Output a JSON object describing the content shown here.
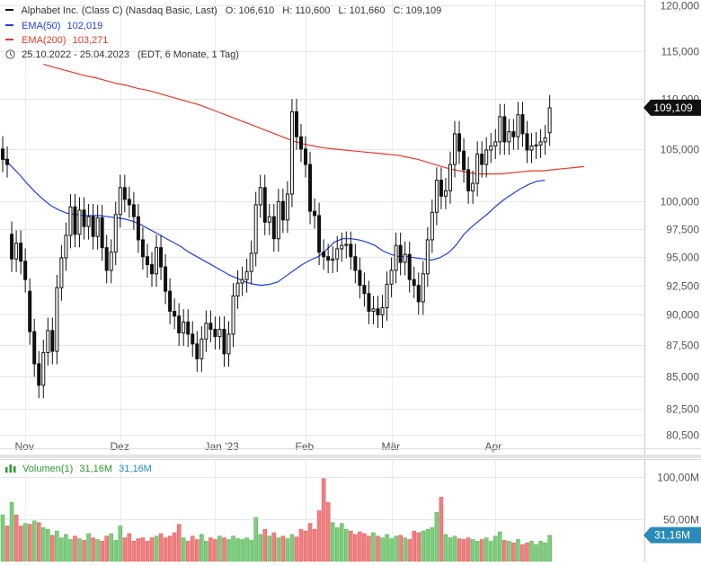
{
  "legend": {
    "instrument": "Alphabet Inc. (Class C) (Nasdaq Basic, Last)",
    "o_label": "O:",
    "o_value": "106,610",
    "h_label": "H:",
    "h_value": "110,600",
    "l_label": "L:",
    "l_value": "101,660",
    "c_label": "C:",
    "c_value": "109,109",
    "ema50_label": "EMA(50)",
    "ema50_value": "102,019",
    "ema200_label": "EMA(200)",
    "ema200_value": "103,271",
    "range": "25.10.2022 - 25.04.2023",
    "range_info": "(EDT, 6 Monate, 1 Tag)"
  },
  "volume_legend": {
    "label": "Volumen(1)",
    "value1": "31,16M",
    "value2": "31,16M"
  },
  "colors": {
    "ema50": "#1f3fe0",
    "ema200": "#e8382c",
    "candle": "#111111",
    "vol_up": "#7fcc7f",
    "vol_down": "#f08080",
    "price_tag": "#111111",
    "vol_tag": "#2a8bb8"
  },
  "chart_data": [
    {
      "type": "candlestick",
      "title": "Alphabet Inc. (Class C) (Nasdaq Basic, Last)",
      "y_scale": "log",
      "ylim": [
        79.5,
        120.6
      ],
      "y_ticks": [
        80.5,
        82.5,
        85,
        87.5,
        90,
        92.5,
        95,
        97.5,
        100,
        105,
        110,
        115,
        120
      ],
      "y_tick_labels": [
        "80,500",
        "82,500",
        "85,000",
        "87,500",
        "90,000",
        "92,500",
        "95,000",
        "97,500",
        "100,000",
        "105,000",
        "110,000",
        "115,000",
        "120,000"
      ],
      "x_labels": [
        {
          "label": "Nov",
          "index": 5
        },
        {
          "label": "Dez",
          "index": 26
        },
        {
          "label": "Jan '23",
          "index": 47
        },
        {
          "label": "Feb",
          "index": 67
        },
        {
          "label": "Mär",
          "index": 86
        },
        {
          "label": "Apr",
          "index": 109
        }
      ],
      "last_price_label": "109,109",
      "last_price": 109.109,
      "close": [
        104.0,
        103.5,
        94.8,
        96.2,
        94.6,
        93.0,
        88.6,
        86.0,
        84.3,
        86.9,
        88.7,
        87.0,
        92.3,
        94.9,
        96.9,
        99.5,
        97.0,
        99.2,
        97.7,
        98.6,
        96.8,
        98.5,
        95.8,
        93.8,
        95.4,
        98.8,
        101.3,
        100.2,
        99.7,
        98.6,
        96.5,
        95.0,
        94.3,
        93.5,
        95.8,
        94.1,
        92.0,
        90.3,
        89.9,
        88.5,
        89.4,
        88.4,
        87.6,
        86.4,
        88.0,
        89.3,
        88.8,
        88.2,
        88.8,
        86.8,
        88.4,
        91.6,
        92.7,
        93.0,
        93.7,
        95.3,
        99.7,
        101.3,
        98.1,
        98.6,
        96.6,
        100.0,
        98.3,
        100.7,
        108.7,
        106.2,
        105.0,
        103.5,
        99.1,
        98.7,
        95.4,
        95.0,
        94.7,
        94.8,
        95.7,
        96.0,
        96.1,
        95.0,
        93.8,
        92.5,
        91.8,
        90.3,
        90.5,
        90.0,
        90.6,
        92.6,
        93.8,
        96.0,
        94.5,
        95.2,
        93.0,
        92.5,
        91.1,
        93.5,
        96.5,
        99.0,
        102.0,
        100.5,
        101.0,
        103.5,
        106.5,
        104.8,
        103.0,
        101.0,
        101.7,
        104.5,
        103.5,
        104.9,
        105.3,
        105.7,
        108.2,
        105.7,
        106.7,
        106.2,
        108.4,
        106.5,
        104.9,
        105.3,
        105.4,
        105.7,
        106.1,
        109.1
      ],
      "open": [
        105.0,
        104.0,
        97.0,
        94.8,
        96.2,
        94.6,
        92.0,
        88.6,
        86.0,
        84.3,
        86.9,
        88.7,
        87.0,
        92.3,
        94.9,
        96.9,
        99.5,
        97.0,
        99.2,
        97.7,
        98.6,
        96.8,
        98.5,
        95.8,
        93.8,
        95.4,
        98.8,
        101.3,
        100.2,
        99.7,
        98.6,
        96.5,
        95.0,
        94.3,
        93.5,
        95.8,
        94.1,
        92.0,
        90.3,
        89.9,
        88.5,
        89.4,
        88.4,
        87.6,
        86.4,
        88.0,
        89.3,
        88.8,
        88.2,
        88.8,
        86.8,
        88.4,
        91.6,
        92.7,
        93.0,
        93.7,
        95.3,
        99.7,
        101.3,
        98.1,
        98.6,
        96.6,
        100.0,
        98.3,
        100.7,
        108.7,
        106.2,
        105.0,
        103.5,
        99.1,
        98.7,
        95.4,
        95.0,
        94.7,
        94.8,
        95.7,
        96.0,
        96.1,
        95.0,
        93.8,
        92.5,
        91.8,
        90.3,
        90.5,
        90.0,
        90.6,
        92.6,
        93.8,
        96.0,
        94.5,
        95.2,
        93.0,
        92.5,
        91.1,
        93.5,
        96.5,
        99.0,
        102.0,
        100.5,
        101.0,
        103.5,
        106.5,
        104.8,
        103.0,
        101.0,
        101.7,
        104.5,
        103.5,
        104.9,
        105.3,
        105.7,
        108.2,
        105.7,
        106.7,
        106.2,
        108.4,
        106.5,
        104.9,
        105.3,
        105.4,
        105.7,
        106.6
      ],
      "ema50": [
        104.2,
        103.4,
        102.6,
        101.7,
        100.9,
        100.2,
        99.6,
        99.2,
        98.9,
        98.8,
        98.7,
        98.7,
        98.7,
        98.6,
        98.5,
        98.4,
        98.2,
        97.9,
        97.5,
        97.1,
        96.7,
        96.3,
        95.9,
        95.4,
        95.0,
        94.6,
        94.2,
        93.8,
        93.4,
        93.1,
        92.8,
        92.6,
        92.5,
        92.6,
        92.8,
        93.3,
        93.8,
        94.3,
        94.7,
        95.0,
        95.6,
        96.3,
        96.6,
        96.6,
        96.5,
        96.3,
        96.0,
        95.5,
        95.2,
        95.0,
        95.0,
        94.9,
        94.8,
        94.7,
        94.9,
        95.3,
        96.0,
        97.0,
        97.7,
        98.3,
        98.9,
        99.6,
        100.2,
        100.7,
        101.2,
        101.6,
        101.9,
        102.0
      ],
      "ema50_start_index": 0,
      "ema200": [
        113.6,
        113.3,
        113.0,
        112.7,
        112.4,
        112.2,
        111.9,
        111.6,
        111.4,
        111.1,
        110.9,
        110.6,
        110.3,
        110.0,
        109.7,
        109.4,
        109.0,
        108.6,
        108.2,
        107.8,
        107.4,
        107.0,
        106.6,
        106.2,
        105.8,
        105.5,
        105.3,
        105.1,
        105.0,
        104.9,
        104.8,
        104.7,
        104.6,
        104.5,
        104.4,
        104.2,
        104.0,
        103.7,
        103.4,
        103.1,
        102.9,
        102.7,
        102.6,
        102.6,
        102.6,
        102.7,
        102.8,
        102.9,
        102.9,
        103.0,
        103.1,
        103.2,
        103.3
      ],
      "ema200_step": 2.3,
      "ema200_start_index": 9
    },
    {
      "type": "bar",
      "title": "Volumen(1)",
      "ylim": [
        0,
        120
      ],
      "y_ticks": [
        50,
        100
      ],
      "y_tick_labels": [
        "50,00M",
        "100,00M"
      ],
      "last_value_label": "31,16M",
      "last_value": 31.16,
      "values": [
        55,
        42,
        70,
        55,
        42,
        45,
        44,
        48,
        46,
        40,
        38,
        31,
        36,
        28,
        32,
        26,
        30,
        27,
        25,
        33,
        28,
        26,
        24,
        30,
        33,
        25,
        42,
        28,
        33,
        24,
        27,
        28,
        24,
        28,
        30,
        33,
        28,
        30,
        34,
        44,
        28,
        24,
        30,
        26,
        32,
        24,
        28,
        26,
        30,
        28,
        26,
        30,
        27,
        26,
        28,
        25,
        52,
        32,
        38,
        30,
        34,
        28,
        30,
        27,
        32,
        29,
        38,
        36,
        45,
        38,
        60,
        98,
        70,
        46,
        40,
        45,
        38,
        36,
        32,
        35,
        33,
        30,
        34,
        30,
        28,
        32,
        27,
        30,
        31,
        28,
        26,
        36,
        34,
        36,
        38,
        40,
        58,
        76,
        32,
        28,
        30,
        27,
        26,
        28,
        26,
        24,
        26,
        28,
        24,
        30,
        35,
        25,
        24,
        22,
        26,
        20,
        22,
        24,
        20,
        24,
        22,
        31
      ],
      "up": [
        1,
        0,
        1,
        0,
        0,
        1,
        0,
        1,
        0,
        1,
        1,
        0,
        1,
        1,
        1,
        1,
        0,
        1,
        0,
        1,
        0,
        1,
        0,
        0,
        1,
        1,
        1,
        0,
        0,
        0,
        0,
        0,
        0,
        0,
        1,
        0,
        0,
        0,
        0,
        0,
        1,
        0,
        0,
        0,
        1,
        1,
        0,
        0,
        1,
        0,
        1,
        1,
        1,
        1,
        1,
        1,
        1,
        1,
        0,
        1,
        0,
        1,
        0,
        1,
        1,
        0,
        0,
        0,
        0,
        0,
        0,
        0,
        0,
        1,
        1,
        1,
        1,
        0,
        0,
        0,
        0,
        0,
        1,
        0,
        1,
        1,
        1,
        1,
        0,
        1,
        0,
        0,
        0,
        1,
        1,
        1,
        1,
        0,
        1,
        1,
        1,
        0,
        0,
        0,
        1,
        1,
        0,
        1,
        1,
        1,
        1,
        0,
        1,
        0,
        1,
        0,
        0,
        1,
        1,
        1,
        1,
        1
      ]
    }
  ]
}
